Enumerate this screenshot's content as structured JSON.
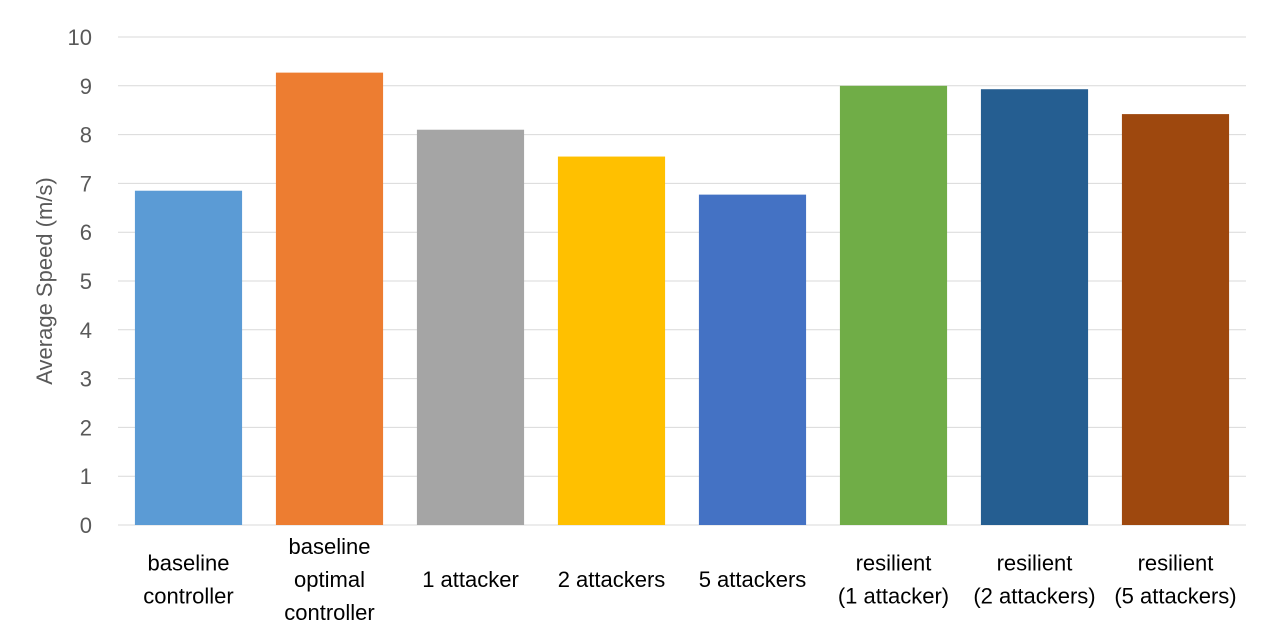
{
  "chart_data": {
    "type": "bar",
    "title": "",
    "xlabel": "",
    "ylabel": "Average Speed (m/s)",
    "ylim": [
      0,
      10
    ],
    "yticks": [
      0,
      1,
      2,
      3,
      4,
      5,
      6,
      7,
      8,
      9,
      10
    ],
    "grid": true,
    "legend": "none",
    "categories": [
      [
        "baseline",
        "controller"
      ],
      [
        "baseline",
        "optimal",
        "controller"
      ],
      [
        "1 attacker"
      ],
      [
        "2 attackers"
      ],
      [
        "5 attackers"
      ],
      [
        "resilient",
        "(1 attacker)"
      ],
      [
        "resilient",
        "(2 attackers)"
      ],
      [
        "resilient",
        "(5 attackers)"
      ]
    ],
    "values": [
      6.85,
      9.27,
      8.1,
      7.55,
      6.77,
      9.0,
      8.93,
      8.42
    ],
    "colors": [
      "#5b9bd5",
      "#ed7d31",
      "#a5a5a5",
      "#ffc000",
      "#4472c4",
      "#70ad47",
      "#255e91",
      "#9e480e"
    ]
  }
}
